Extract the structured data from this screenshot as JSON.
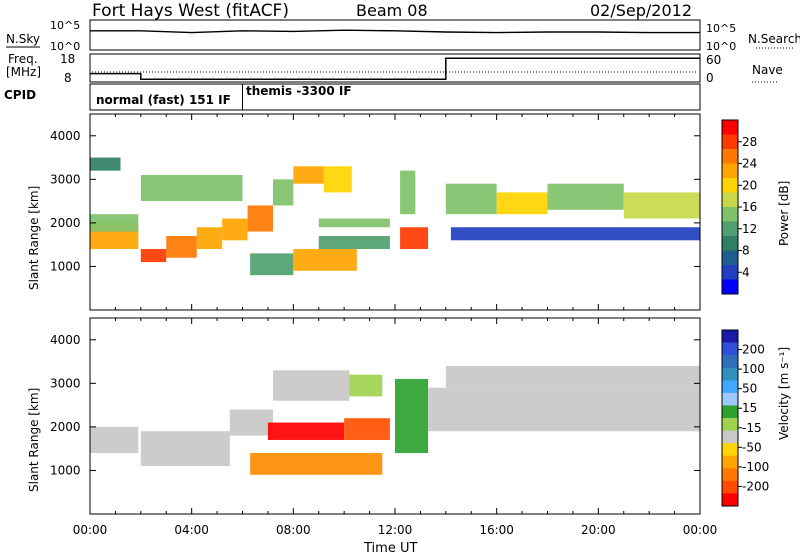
{
  "header": {
    "site": "Fort Hays West (fitACF)",
    "beam": "Beam 08",
    "date": "02/Sep/2012"
  },
  "noise_panel": {
    "left_label": "N.Sky",
    "left_ticks": [
      "10^5",
      "10^0"
    ],
    "right_ticks": [
      "10^5",
      "10^0"
    ],
    "right_label": "N.Search"
  },
  "freq_panel": {
    "left_label_1": "Freq.",
    "left_label_2": "[MHz]",
    "left_ticks": [
      "18",
      "8"
    ],
    "right_ticks": [
      "60",
      "0"
    ],
    "right_label": "Nave"
  },
  "cpid": {
    "label": "CPID",
    "mode_1": "normal (fast) 151 IF",
    "mode_2": "themis -3300 IF"
  },
  "colorbars": {
    "power": {
      "title": "Power [dB]",
      "ticks": [
        "28",
        "24",
        "20",
        "16",
        "12",
        "8",
        "4"
      ],
      "colors": [
        "#ff0000",
        "#ff3a00",
        "#ff7800",
        "#ffa500",
        "#ffd400",
        "#c8d84a",
        "#7fc26a",
        "#4f9f70",
        "#2f7f66",
        "#1f5f8f",
        "#1f3fbf",
        "#0000ff"
      ]
    },
    "velocity": {
      "title": "Velocity [m s⁻¹]",
      "ticks": [
        "200",
        "100",
        "50",
        "15",
        "-15",
        "-50",
        "-100",
        "-200"
      ],
      "colors": [
        "#1a1aa8",
        "#2f4fd8",
        "#2f6fb8",
        "#2f8fbf",
        "#40a8ff",
        "#a0c8ff",
        "#2fa12f",
        "#9fd24f",
        "#c8c8c8",
        "#ffd400",
        "#ffa500",
        "#ff7800",
        "#ff4a00",
        "#ff0000"
      ]
    }
  },
  "range_axes": {
    "ylabel": "Slant Range [km]",
    "yticks": [
      "4000",
      "3000",
      "2000",
      "1000"
    ]
  },
  "time_axis": {
    "xlabel": "Time UT",
    "ticks": [
      "00:00",
      "04:00",
      "08:00",
      "12:00",
      "16:00",
      "20:00",
      "00:00"
    ]
  },
  "chart_data": {
    "type": "heatmap",
    "x_range_hours": [
      0,
      24
    ],
    "y_range_km": [
      0,
      4500
    ],
    "cpid_change_hours": 6,
    "noise_series": {
      "name": "N.Sky",
      "x": [
        0,
        2,
        4,
        6,
        8,
        10,
        12,
        14,
        16,
        18,
        20,
        22,
        24
      ],
      "y_log10": [
        3.2,
        3.2,
        2.9,
        3.2,
        3.1,
        3.3,
        3.2,
        3.0,
        2.9,
        3.0,
        3.0,
        2.9,
        2.9
      ]
    },
    "freq_series": {
      "name": "Freq.",
      "x": [
        0,
        2,
        2.0,
        14,
        14.0,
        24
      ],
      "y": [
        11,
        11,
        9,
        9,
        16.5,
        16.5
      ]
    },
    "power_features": [
      {
        "x0": 0.0,
        "x1": 1.9,
        "y0": 1400,
        "y1": 2000,
        "db": 22
      },
      {
        "x0": 0.0,
        "x1": 1.9,
        "y0": 1800,
        "y1": 2200,
        "db": 14
      },
      {
        "x0": 0.0,
        "x1": 1.2,
        "y0": 3200,
        "y1": 3500,
        "db": 10
      },
      {
        "x0": 2.0,
        "x1": 3.0,
        "y0": 1100,
        "y1": 1400,
        "db": 26
      },
      {
        "x0": 3.0,
        "x1": 4.2,
        "y0": 1200,
        "y1": 1700,
        "db": 24
      },
      {
        "x0": 4.2,
        "x1": 5.2,
        "y0": 1400,
        "y1": 1900,
        "db": 22
      },
      {
        "x0": 5.2,
        "x1": 6.2,
        "y0": 1600,
        "y1": 2100,
        "db": 22
      },
      {
        "x0": 6.2,
        "x1": 7.2,
        "y0": 1800,
        "y1": 2400,
        "db": 24
      },
      {
        "x0": 2.0,
        "x1": 6.0,
        "y0": 2500,
        "y1": 3100,
        "db": 14
      },
      {
        "x0": 7.2,
        "x1": 8.0,
        "y0": 2400,
        "y1": 3000,
        "db": 16
      },
      {
        "x0": 8.0,
        "x1": 9.2,
        "y0": 2900,
        "y1": 3300,
        "db": 22
      },
      {
        "x0": 9.2,
        "x1": 10.3,
        "y0": 2700,
        "y1": 3300,
        "db": 20
      },
      {
        "x0": 9.0,
        "x1": 11.8,
        "y0": 1900,
        "y1": 2100,
        "db": 14
      },
      {
        "x0": 9.0,
        "x1": 11.8,
        "y0": 1400,
        "y1": 1700,
        "db": 12
      },
      {
        "x0": 6.3,
        "x1": 8.0,
        "y0": 800,
        "y1": 1300,
        "db": 12
      },
      {
        "x0": 8.0,
        "x1": 10.5,
        "y0": 900,
        "y1": 1400,
        "db": 22
      },
      {
        "x0": 12.2,
        "x1": 13.3,
        "y0": 1400,
        "y1": 1900,
        "db": 26
      },
      {
        "x0": 12.2,
        "x1": 12.8,
        "y0": 2200,
        "y1": 3200,
        "db": 14
      },
      {
        "x0": 14.0,
        "x1": 16.0,
        "y0": 2200,
        "y1": 2900,
        "db": 16
      },
      {
        "x0": 16.0,
        "x1": 18.0,
        "y0": 2200,
        "y1": 2700,
        "db": 20
      },
      {
        "x0": 18.0,
        "x1": 21.0,
        "y0": 2300,
        "y1": 2900,
        "db": 16
      },
      {
        "x0": 21.0,
        "x1": 24.0,
        "y0": 2100,
        "y1": 2700,
        "db": 18
      },
      {
        "x0": 14.2,
        "x1": 24.0,
        "y0": 1600,
        "y1": 1900,
        "db": 6
      }
    ],
    "velocity_features": [
      {
        "x0": 0.0,
        "x1": 1.9,
        "y0": 1400,
        "y1": 2000,
        "v": -10
      },
      {
        "x0": 2.0,
        "x1": 5.5,
        "y0": 1100,
        "y1": 1900,
        "v": -10
      },
      {
        "x0": 5.5,
        "x1": 7.2,
        "y0": 1800,
        "y1": 2400,
        "v": -10
      },
      {
        "x0": 7.2,
        "x1": 10.2,
        "y0": 2600,
        "y1": 3300,
        "v": -10
      },
      {
        "x0": 10.2,
        "x1": 11.5,
        "y0": 2700,
        "y1": 3200,
        "v": 25
      },
      {
        "x0": 7.0,
        "x1": 10.0,
        "y0": 1700,
        "y1": 2100,
        "v": -200
      },
      {
        "x0": 10.0,
        "x1": 11.8,
        "y0": 1700,
        "y1": 2200,
        "v": -120
      },
      {
        "x0": 6.3,
        "x1": 11.5,
        "y0": 900,
        "y1": 1400,
        "v": -60
      },
      {
        "x0": 12.0,
        "x1": 13.3,
        "y0": 1400,
        "y1": 3100,
        "v": 40
      },
      {
        "x0": 13.3,
        "x1": 24.0,
        "y0": 1900,
        "y1": 2900,
        "v": -10
      },
      {
        "x0": 14.0,
        "x1": 24.0,
        "y0": 2900,
        "y1": 3400,
        "v": -10
      }
    ]
  }
}
